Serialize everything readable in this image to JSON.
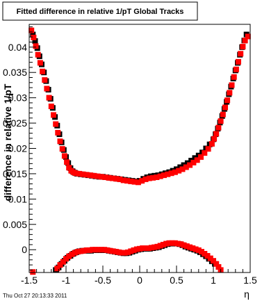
{
  "chart_data": {
    "type": "scatter",
    "title": "Fitted difference in relative 1/pT  Global Tracks",
    "xlabel": "η",
    "ylabel": "difference in relative 1/pT",
    "xlim": [
      -1.5,
      1.5
    ],
    "ylim": [
      -0.0045,
      0.0445
    ],
    "x_ticks": [
      "-1.5",
      "-1",
      "-0.5",
      "0",
      "0.5",
      "1",
      "1.5"
    ],
    "y_ticks": [
      "0",
      "0.005",
      "0.01",
      "0.015",
      "0.02",
      "0.025",
      "0.03",
      "0.035",
      "0.04"
    ],
    "grid": false,
    "legend": "none",
    "colors": {
      "series_black": "#000000",
      "series_red": "#ff0000",
      "frame": "#000000"
    },
    "series": [
      {
        "color": "#000000",
        "points": [
          [
            -1.45,
            0.0425
          ],
          [
            -1.42,
            0.0412
          ],
          [
            -1.39,
            0.0398
          ],
          [
            -1.36,
            0.0382
          ],
          [
            -1.33,
            0.0366
          ],
          [
            -1.3,
            0.035
          ],
          [
            -1.27,
            0.0333
          ],
          [
            -1.24,
            0.0316
          ],
          [
            -1.21,
            0.0298
          ],
          [
            -1.18,
            0.028
          ],
          [
            -1.15,
            0.0262
          ],
          [
            -1.12,
            0.0245
          ],
          [
            -1.09,
            0.0228
          ],
          [
            -1.06,
            0.0212
          ],
          [
            -1.03,
            0.0197
          ],
          [
            -1.0,
            0.0183
          ],
          [
            -0.97,
            0.0171
          ],
          [
            -0.94,
            0.0161
          ],
          [
            -0.91,
            0.0155
          ],
          [
            -0.88,
            0.0152
          ],
          [
            -0.85,
            0.015
          ],
          [
            -0.8,
            0.0149
          ],
          [
            -0.75,
            0.0148
          ],
          [
            -0.7,
            0.0147
          ],
          [
            -0.65,
            0.0146
          ],
          [
            -0.6,
            0.0145
          ],
          [
            -0.55,
            0.0144
          ],
          [
            -0.5,
            0.0144
          ],
          [
            -0.45,
            0.0143
          ],
          [
            -0.4,
            0.0142
          ],
          [
            -0.35,
            0.0141
          ],
          [
            -0.3,
            0.014
          ],
          [
            -0.25,
            0.0139
          ],
          [
            -0.2,
            0.0138
          ],
          [
            -0.15,
            0.0137
          ],
          [
            -0.1,
            0.0136
          ],
          [
            -0.05,
            0.0135
          ],
          [
            0.0,
            0.0136
          ],
          [
            0.05,
            0.014
          ],
          [
            0.1,
            0.0143
          ],
          [
            0.15,
            0.0145
          ],
          [
            0.2,
            0.0146
          ],
          [
            0.25,
            0.0147
          ],
          [
            0.3,
            0.0149
          ],
          [
            0.35,
            0.0151
          ],
          [
            0.4,
            0.0153
          ],
          [
            0.45,
            0.0156
          ],
          [
            0.5,
            0.0159
          ],
          [
            0.55,
            0.0163
          ],
          [
            0.6,
            0.0167
          ],
          [
            0.65,
            0.0171
          ],
          [
            0.7,
            0.0176
          ],
          [
            0.75,
            0.0181
          ],
          [
            0.8,
            0.0186
          ],
          [
            0.85,
            0.0192
          ],
          [
            0.9,
            0.02
          ],
          [
            0.95,
            0.0208
          ],
          [
            1.0,
            0.0218
          ],
          [
            1.03,
            0.0228
          ],
          [
            1.06,
            0.0239
          ],
          [
            1.09,
            0.0251
          ],
          [
            1.12,
            0.0264
          ],
          [
            1.15,
            0.0278
          ],
          [
            1.18,
            0.0292
          ],
          [
            1.21,
            0.0307
          ],
          [
            1.24,
            0.0322
          ],
          [
            1.27,
            0.0338
          ],
          [
            1.3,
            0.0354
          ],
          [
            1.33,
            0.0369
          ],
          [
            1.36,
            0.0385
          ],
          [
            1.39,
            0.04
          ],
          [
            1.42,
            0.0413
          ],
          [
            1.45,
            0.0425
          ],
          [
            -1.14,
            -0.004
          ],
          [
            -1.1,
            -0.0035
          ],
          [
            -1.06,
            -0.0028
          ],
          [
            -1.02,
            -0.0022
          ],
          [
            -0.98,
            -0.0016
          ],
          [
            -0.94,
            -0.0012
          ],
          [
            -0.9,
            -0.0008
          ],
          [
            -0.86,
            -0.0005
          ],
          [
            -0.82,
            -0.0003
          ],
          [
            -0.78,
            -0.0002
          ],
          [
            -0.74,
            -0.0002
          ],
          [
            -0.7,
            -0.0002
          ],
          [
            -0.66,
            -0.0002
          ],
          [
            -0.62,
            -0.0001
          ],
          [
            -0.58,
            -0.0001
          ],
          [
            -0.54,
            -0.0001
          ],
          [
            -0.5,
            -0.0001
          ],
          [
            -0.46,
            -0.0001
          ],
          [
            -0.42,
            -0.0002
          ],
          [
            -0.38,
            -0.0003
          ],
          [
            -0.34,
            -0.0004
          ],
          [
            -0.3,
            -0.0005
          ],
          [
            -0.26,
            -0.0006
          ],
          [
            -0.22,
            -0.0007
          ],
          [
            -0.18,
            -0.0007
          ],
          [
            -0.14,
            -0.0006
          ],
          [
            -0.1,
            -0.0004
          ],
          [
            -0.06,
            -0.0002
          ],
          [
            -0.02,
            0.0
          ],
          [
            0.02,
            0.0001
          ],
          [
            0.06,
            0.0002
          ],
          [
            0.1,
            0.0002
          ],
          [
            0.14,
            0.0002
          ],
          [
            0.18,
            0.0003
          ],
          [
            0.22,
            0.0004
          ],
          [
            0.26,
            0.0005
          ],
          [
            0.3,
            0.0007
          ],
          [
            0.34,
            0.0009
          ],
          [
            0.38,
            0.0011
          ],
          [
            0.42,
            0.0012
          ],
          [
            0.46,
            0.0012
          ],
          [
            0.5,
            0.0012
          ],
          [
            0.54,
            0.0011
          ],
          [
            0.58,
            0.0009
          ],
          [
            0.62,
            0.0006
          ],
          [
            0.66,
            0.0004
          ],
          [
            0.7,
            0.0002
          ],
          [
            0.74,
            0.0
          ],
          [
            0.78,
            -0.0002
          ],
          [
            0.82,
            -0.0005
          ],
          [
            0.86,
            -0.0009
          ],
          [
            0.9,
            -0.0013
          ],
          [
            0.94,
            -0.0018
          ],
          [
            0.98,
            -0.0023
          ],
          [
            1.02,
            -0.0028
          ]
        ]
      },
      {
        "color": "#ff0000",
        "points": [
          [
            -1.47,
            0.0433
          ],
          [
            -1.44,
            0.0419
          ],
          [
            -1.41,
            0.0402
          ],
          [
            -1.38,
            0.0385
          ],
          [
            -1.35,
            0.0369
          ],
          [
            -1.32,
            0.0352
          ],
          [
            -1.29,
            0.0335
          ],
          [
            -1.26,
            0.0318
          ],
          [
            -1.23,
            0.03
          ],
          [
            -1.2,
            0.0283
          ],
          [
            -1.17,
            0.0266
          ],
          [
            -1.14,
            0.0248
          ],
          [
            -1.11,
            0.0231
          ],
          [
            -1.08,
            0.0214
          ],
          [
            -1.05,
            0.0199
          ],
          [
            -1.02,
            0.0185
          ],
          [
            -0.99,
            0.0173
          ],
          [
            -0.96,
            0.0162
          ],
          [
            -0.93,
            0.0156
          ],
          [
            -0.9,
            0.0153
          ],
          [
            -0.87,
            0.0151
          ],
          [
            -0.82,
            0.015
          ],
          [
            -0.77,
            0.0149
          ],
          [
            -0.72,
            0.0148
          ],
          [
            -0.67,
            0.0147
          ],
          [
            -0.62,
            0.0146
          ],
          [
            -0.57,
            0.0145
          ],
          [
            -0.52,
            0.0144
          ],
          [
            -0.47,
            0.0143
          ],
          [
            -0.42,
            0.0142
          ],
          [
            -0.37,
            0.0141
          ],
          [
            -0.32,
            0.014
          ],
          [
            -0.27,
            0.0139
          ],
          [
            -0.22,
            0.0137
          ],
          [
            -0.17,
            0.0136
          ],
          [
            -0.12,
            0.0135
          ],
          [
            -0.07,
            0.0134
          ],
          [
            -0.02,
            0.0133
          ],
          [
            0.03,
            0.0136
          ],
          [
            0.08,
            0.0139
          ],
          [
            0.13,
            0.0141
          ],
          [
            0.18,
            0.0142
          ],
          [
            0.23,
            0.0143
          ],
          [
            0.28,
            0.0145
          ],
          [
            0.33,
            0.0147
          ],
          [
            0.38,
            0.0149
          ],
          [
            0.43,
            0.0151
          ],
          [
            0.48,
            0.0153
          ],
          [
            0.53,
            0.0156
          ],
          [
            0.58,
            0.0159
          ],
          [
            0.63,
            0.0163
          ],
          [
            0.68,
            0.0167
          ],
          [
            0.73,
            0.0172
          ],
          [
            0.78,
            0.0177
          ],
          [
            0.83,
            0.0183
          ],
          [
            0.88,
            0.0191
          ],
          [
            0.93,
            0.0199
          ],
          [
            0.98,
            0.0209
          ],
          [
            1.01,
            0.0219
          ],
          [
            1.04,
            0.0229
          ],
          [
            1.07,
            0.0241
          ],
          [
            1.1,
            0.0254
          ],
          [
            1.13,
            0.0267
          ],
          [
            1.16,
            0.0281
          ],
          [
            1.19,
            0.0295
          ],
          [
            1.22,
            0.031
          ],
          [
            1.25,
            0.0325
          ],
          [
            1.28,
            0.0341
          ],
          [
            1.31,
            0.0356
          ],
          [
            1.34,
            0.0371
          ],
          [
            1.37,
            0.0387
          ],
          [
            1.4,
            0.0401
          ],
          [
            1.43,
            0.0413
          ],
          [
            1.47,
            0.0421
          ],
          [
            -1.45,
            -0.0044
          ],
          [
            -1.12,
            -0.0037
          ],
          [
            -1.08,
            -0.003
          ],
          [
            -1.04,
            -0.0024
          ],
          [
            -1.0,
            -0.0018
          ],
          [
            -0.96,
            -0.0013
          ],
          [
            -0.92,
            -0.0009
          ],
          [
            -0.88,
            -0.0006
          ],
          [
            -0.84,
            -0.0004
          ],
          [
            -0.8,
            -0.0003
          ],
          [
            -0.76,
            -0.0002
          ],
          [
            -0.72,
            -0.0001
          ],
          [
            -0.68,
            -0.0001
          ],
          [
            -0.64,
            0.0
          ],
          [
            -0.6,
            0.0
          ],
          [
            -0.56,
            0.0
          ],
          [
            -0.52,
            0.0
          ],
          [
            -0.48,
            0.0
          ],
          [
            -0.44,
            -0.0001
          ],
          [
            -0.4,
            -0.0002
          ],
          [
            -0.36,
            -0.0003
          ],
          [
            -0.32,
            -0.0004
          ],
          [
            -0.28,
            -0.0005
          ],
          [
            -0.24,
            -0.0006
          ],
          [
            -0.2,
            -0.0006
          ],
          [
            -0.16,
            -0.0005
          ],
          [
            -0.12,
            -0.0003
          ],
          [
            -0.08,
            -0.0001
          ],
          [
            -0.04,
            0.0001
          ],
          [
            0.0,
            0.0002
          ],
          [
            0.04,
            0.0003
          ],
          [
            0.08,
            0.0003
          ],
          [
            0.12,
            0.0003
          ],
          [
            0.16,
            0.0004
          ],
          [
            0.2,
            0.0005
          ],
          [
            0.24,
            0.0006
          ],
          [
            0.28,
            0.0008
          ],
          [
            0.32,
            0.001
          ],
          [
            0.36,
            0.0012
          ],
          [
            0.4,
            0.0013
          ],
          [
            0.44,
            0.0013
          ],
          [
            0.48,
            0.0013
          ],
          [
            0.52,
            0.0012
          ],
          [
            0.56,
            0.0011
          ],
          [
            0.6,
            0.0009
          ],
          [
            0.64,
            0.0007
          ],
          [
            0.68,
            0.0005
          ],
          [
            0.72,
            0.0003
          ],
          [
            0.76,
            0.0001
          ],
          [
            0.8,
            -0.0001
          ],
          [
            0.84,
            -0.0004
          ],
          [
            0.88,
            -0.0008
          ],
          [
            0.92,
            -0.0012
          ],
          [
            0.96,
            -0.0017
          ],
          [
            1.0,
            -0.0022
          ],
          [
            1.04,
            -0.0028
          ],
          [
            1.07,
            -0.0034
          ],
          [
            1.1,
            -0.004
          ]
        ]
      }
    ]
  },
  "footer": {
    "timestamp": "Thu Oct 27 20:13:33 2011"
  }
}
